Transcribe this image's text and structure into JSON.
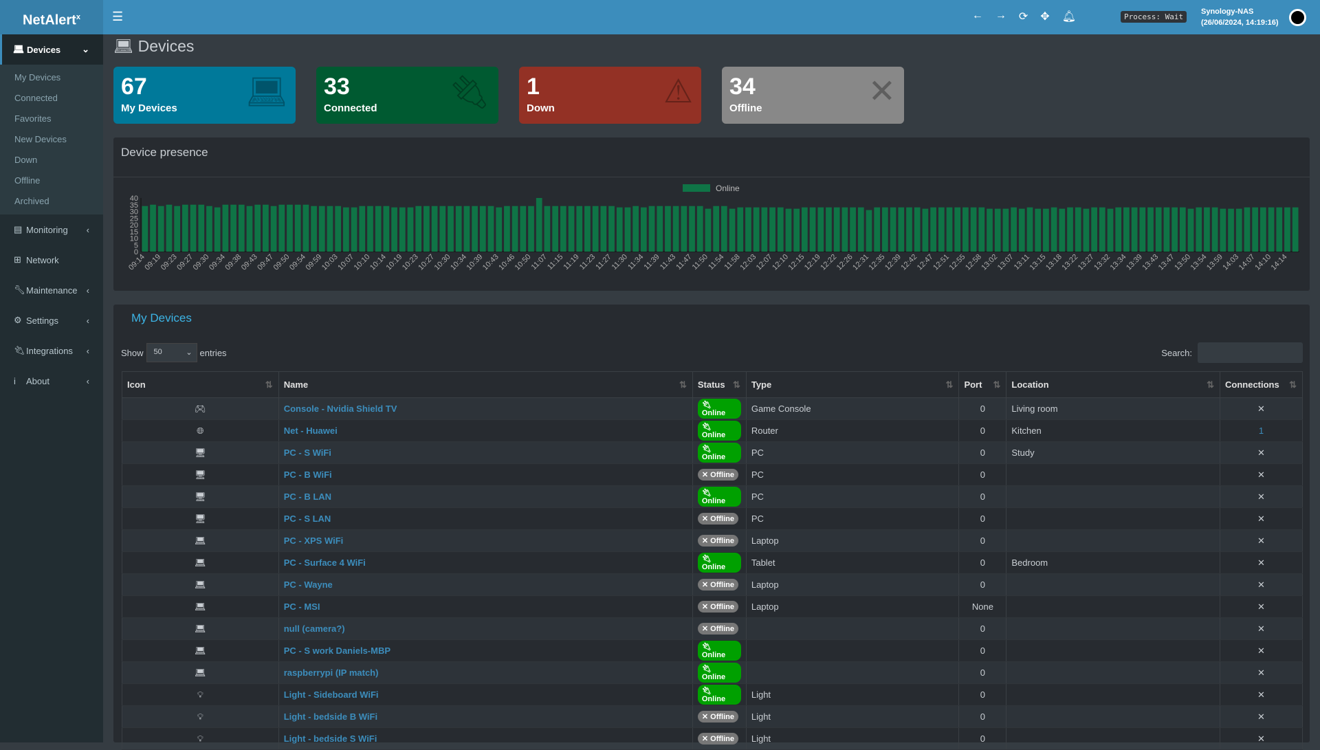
{
  "app": {
    "logo": "NetAlert",
    "logo_sup": "x",
    "process": "Process: Wait",
    "host": "Synology-NAS",
    "datetime": "(26/06/2024, 14:19:16)"
  },
  "sidebar": {
    "active": "Devices",
    "sub": [
      "My Devices",
      "Connected",
      "Favorites",
      "New Devices",
      "Down",
      "Offline",
      "Archived"
    ],
    "items": [
      {
        "label": "Monitoring",
        "icon": "chart-icon",
        "chev": true
      },
      {
        "label": "Network",
        "icon": "network-icon",
        "chev": false
      },
      {
        "label": "Maintenance",
        "icon": "wrench-icon",
        "chev": true
      },
      {
        "label": "Settings",
        "icon": "gear-icon",
        "chev": true
      },
      {
        "label": "Integrations",
        "icon": "plug-icon",
        "chev": true
      },
      {
        "label": "About",
        "icon": "info-icon",
        "chev": true
      }
    ]
  },
  "page": {
    "title": "Devices"
  },
  "cards": [
    {
      "num": "67",
      "label": "My Devices",
      "color": "#00799a",
      "icon": "laptop-icon"
    },
    {
      "num": "33",
      "label": "Connected",
      "color": "#005a31",
      "icon": "plug-icon"
    },
    {
      "num": "1",
      "label": "Down",
      "color": "#933125",
      "icon": "warning-icon"
    },
    {
      "num": "34",
      "label": "Offline",
      "color": "#888888",
      "icon": "x-icon"
    }
  ],
  "chart_data": {
    "type": "bar",
    "title": "Device presence",
    "legend": "Online",
    "legend_position": "top",
    "color": "#0f7446",
    "ylim": [
      0,
      40
    ],
    "yticks": [
      "0",
      "5",
      "10",
      "15",
      "20",
      "25",
      "30",
      "35",
      "40"
    ],
    "tick_labels": [
      "09:14",
      "09:19",
      "09:23",
      "09:27",
      "09:30",
      "09:34",
      "09:38",
      "09:43",
      "09:47",
      "09:50",
      "09:54",
      "09:59",
      "10:03",
      "10:07",
      "10:10",
      "10:14",
      "10:19",
      "10:23",
      "10:27",
      "10:30",
      "10:34",
      "10:39",
      "10:43",
      "10:46",
      "10:50",
      "11:07",
      "11:15",
      "11:19",
      "11:23",
      "11:27",
      "11:30",
      "11:34",
      "11:39",
      "11:43",
      "11:47",
      "11:50",
      "11:54",
      "11:58",
      "12:03",
      "12:07",
      "12:10",
      "12:15",
      "12:19",
      "12:22",
      "12:26",
      "12:31",
      "12:35",
      "12:39",
      "12:42",
      "12:47",
      "12:51",
      "12:55",
      "12:58",
      "13:02",
      "13:07",
      "13:11",
      "13:15",
      "13:18",
      "13:22",
      "13:27",
      "13:32",
      "13:34",
      "13:39",
      "13:43",
      "13:47",
      "13:50",
      "13:54",
      "13:59",
      "14:03",
      "14:07",
      "14:10",
      "14:14"
    ],
    "values": [
      34,
      35,
      34,
      35,
      34,
      35,
      35,
      35,
      34,
      33,
      35,
      35,
      35,
      34,
      35,
      35,
      34,
      35,
      35,
      35,
      35,
      34,
      34,
      34,
      34,
      33,
      33,
      34,
      34,
      34,
      34,
      33,
      33,
      33,
      34,
      34,
      34,
      34,
      34,
      34,
      34,
      34,
      34,
      34,
      33,
      34,
      34,
      34,
      34,
      40,
      34,
      34,
      34,
      34,
      34,
      34,
      34,
      34,
      34,
      33,
      33,
      34,
      33,
      34,
      34,
      34,
      34,
      34,
      34,
      34,
      32,
      34,
      34,
      32,
      33,
      33,
      33,
      33,
      33,
      33,
      32,
      32,
      33,
      33,
      33,
      33,
      33,
      33,
      33,
      33,
      31,
      33,
      33,
      33,
      33,
      33,
      33,
      32,
      33,
      33,
      33,
      33,
      33,
      33,
      33,
      32,
      32,
      32,
      33,
      32,
      33,
      32,
      32,
      33,
      32,
      33,
      33,
      32,
      33,
      33,
      32,
      33,
      33,
      33,
      33,
      33,
      33,
      33,
      33,
      33,
      32,
      33,
      33,
      33,
      32,
      32,
      32,
      33,
      33,
      33,
      33,
      33,
      33,
      33
    ]
  },
  "table": {
    "title": "My Devices",
    "show": "Show",
    "entries": "entries",
    "page_size": "50",
    "search_label": "Search:",
    "headers": [
      "Icon",
      "Name",
      "Status",
      "Type",
      "Port",
      "Location",
      "Connections"
    ],
    "rows": [
      [
        "gamepad-icon",
        "Console - Nvidia Shield TV",
        "Online",
        "Game Console",
        "0",
        "Living room",
        "✕"
      ],
      [
        "globe-icon",
        "Net - Huawei",
        "Online",
        "Router",
        "0",
        "Kitchen",
        "1"
      ],
      [
        "desktop-icon",
        "PC - S WiFi",
        "Online",
        "PC",
        "0",
        "Study",
        "✕"
      ],
      [
        "desktop-icon",
        "PC - B WiFi",
        "Offline",
        "PC",
        "0",
        "",
        "✕"
      ],
      [
        "desktop-icon",
        "PC - B LAN",
        "Online",
        "PC",
        "0",
        "",
        "✕"
      ],
      [
        "desktop-icon",
        "PC - S LAN",
        "Offline",
        "PC",
        "0",
        "",
        "✕"
      ],
      [
        "laptop-icon",
        "PC - XPS WiFi",
        "Offline",
        "Laptop",
        "0",
        "",
        "✕"
      ],
      [
        "laptop-icon",
        "PC - Surface 4 WiFi",
        "Online",
        "Tablet",
        "0",
        "Bedroom",
        "✕"
      ],
      [
        "laptop-icon",
        "PC - Wayne",
        "Offline",
        "Laptop",
        "0",
        "",
        "✕"
      ],
      [
        "laptop-icon",
        "PC - MSI",
        "Offline",
        "Laptop",
        "None",
        "",
        "✕"
      ],
      [
        "laptop-icon",
        "null (camera?)",
        "Offline",
        "",
        "0",
        "",
        "✕"
      ],
      [
        "laptop-icon",
        "PC - S work Daniels-MBP",
        "Online",
        "",
        "0",
        "",
        "✕"
      ],
      [
        "laptop-icon",
        "raspberrypi (IP match)",
        "Online",
        "",
        "0",
        "",
        "✕"
      ],
      [
        "bulb-icon",
        "Light - Sideboard WiFi",
        "Online",
        "Light",
        "0",
        "",
        "✕"
      ],
      [
        "bulb-icon",
        "Light - bedside B WiFi",
        "Offline",
        "Light",
        "0",
        "",
        "✕"
      ],
      [
        "bulb-icon",
        "Light - bedside S WiFi",
        "Offline",
        "Light",
        "0",
        "",
        "✕"
      ]
    ]
  }
}
